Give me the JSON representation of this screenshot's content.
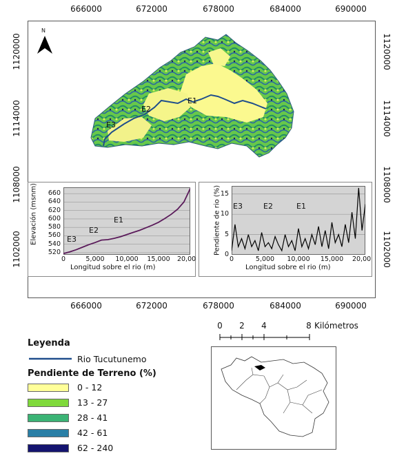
{
  "map": {
    "north_label": "N",
    "x_ticks": [
      "666000",
      "672000",
      "678000",
      "684000",
      "690000"
    ],
    "y_ticks": [
      "1120000",
      "1114000",
      "1108000",
      "1102000"
    ],
    "segment_labels": [
      "E1",
      "E2",
      "E3"
    ]
  },
  "chart_data": [
    {
      "type": "line",
      "xlabel": "Longitud sobre el rio (m)",
      "ylabel": "Elevación (msnm)",
      "xlim": [
        0,
        20000
      ],
      "ylim": [
        515,
        675
      ],
      "x_ticks": [
        "0",
        "5,000",
        "10,000",
        "15,000",
        "20,00"
      ],
      "y_ticks": [
        "520",
        "540",
        "560",
        "580",
        "600",
        "620",
        "640",
        "660"
      ],
      "annotations": [
        "E3",
        "E2",
        "E1"
      ],
      "x": [
        0,
        1000,
        2000,
        3000,
        4000,
        5000,
        6000,
        7000,
        8000,
        9000,
        10000,
        11000,
        12000,
        13000,
        14000,
        15000,
        16000,
        17000,
        18000,
        19000,
        20000
      ],
      "y": [
        518,
        522,
        527,
        533,
        539,
        544,
        550,
        551,
        554,
        558,
        563,
        568,
        573,
        579,
        585,
        592,
        601,
        611,
        623,
        640,
        672
      ]
    },
    {
      "type": "line",
      "xlabel": "Longitud sobre el rio (m)",
      "ylabel": "Pendiente de rio (%)",
      "xlim": [
        0,
        20000
      ],
      "ylim": [
        0,
        17
      ],
      "x_ticks": [
        "0",
        "5,000",
        "10,000",
        "15,000",
        "20,00"
      ],
      "y_ticks": [
        "0",
        "5",
        "10",
        "15"
      ],
      "annotations": [
        "E3",
        "E2",
        "E1"
      ],
      "x": [
        0,
        500,
        1000,
        1500,
        2000,
        2500,
        3000,
        3500,
        4000,
        4500,
        5000,
        5500,
        6000,
        6500,
        7000,
        7500,
        8000,
        8500,
        9000,
        9500,
        10000,
        10500,
        11000,
        11500,
        12000,
        12500,
        13000,
        13500,
        14000,
        14500,
        15000,
        15500,
        16000,
        16500,
        17000,
        17500,
        18000,
        18500,
        19000,
        19500,
        20000
      ],
      "y": [
        1,
        7.5,
        2,
        4,
        1.5,
        5,
        2,
        3.5,
        1,
        5.5,
        2,
        3,
        1.5,
        4.5,
        2.5,
        1,
        5,
        2,
        3.5,
        1,
        6.5,
        2,
        4,
        1.5,
        5,
        2.5,
        7,
        2,
        6,
        1.5,
        8,
        3,
        5,
        2,
        7.5,
        3,
        10.5,
        4,
        16.5,
        6,
        12.5
      ]
    }
  ],
  "scale_bar": {
    "ticks": [
      "0",
      "2",
      "4",
      "8"
    ],
    "unit": "Kilómetros"
  },
  "legend": {
    "title": "Leyenda",
    "line_label": "Rio Tucutunemo",
    "line_color": "#1f4e8c",
    "subtitle": "Pendiente de Terreno (%)",
    "classes": [
      {
        "label": "0 - 12",
        "color": "#ffff99"
      },
      {
        "label": "13 - 27",
        "color": "#7fd93b"
      },
      {
        "label": "28 - 41",
        "color": "#3bb375"
      },
      {
        "label": "42 - 61",
        "color": "#2a7fa6"
      },
      {
        "label": "62 - 240",
        "color": "#141470"
      }
    ]
  }
}
